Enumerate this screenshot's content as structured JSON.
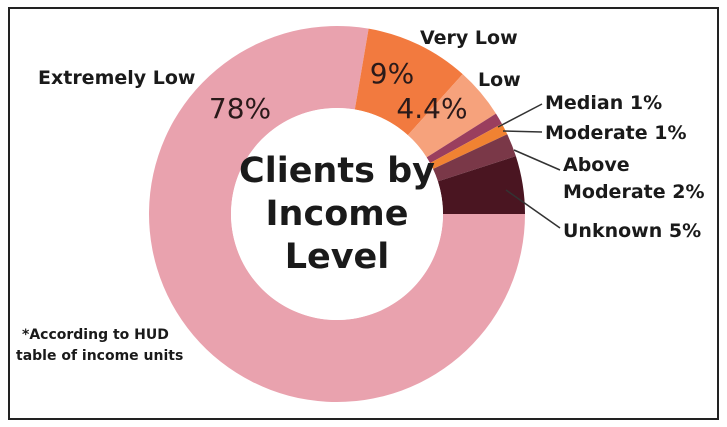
{
  "chart_data": {
    "type": "donut",
    "title": "Clients by Income Level",
    "categories": [
      "Extremely Low",
      "Very Low",
      "Low",
      "Median",
      "Moderate",
      "Above Moderate",
      "Unknown"
    ],
    "values": [
      78,
      9,
      4.4,
      1,
      1,
      2,
      5
    ],
    "value_labels": [
      "78%",
      "9%",
      "4.4%",
      "1%",
      "1%",
      "2%",
      "5%"
    ],
    "colors": [
      "#e9a2ae",
      "#f27a3f",
      "#f6a27c",
      "#9a3e5e",
      "#f08232",
      "#7a3848",
      "#4a1521"
    ],
    "annotation": "*According to HUD table of income units"
  }
}
